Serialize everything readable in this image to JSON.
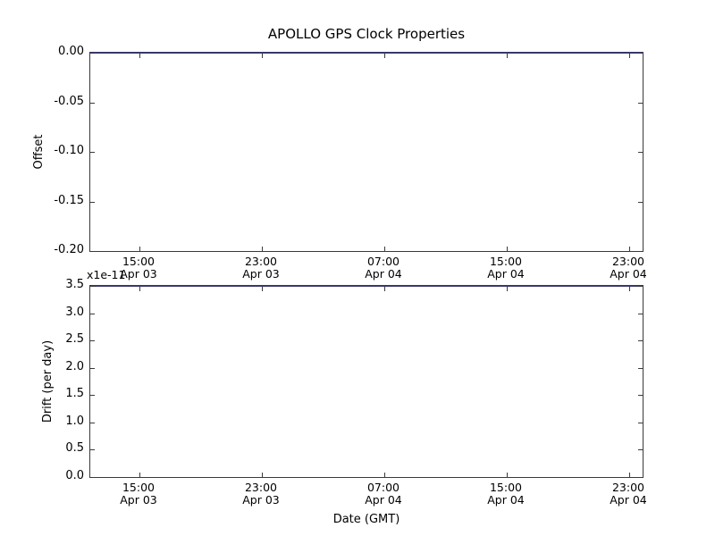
{
  "figure": {
    "title": "APOLLO GPS Clock Properties",
    "xlabel": "Date (GMT)",
    "background_color": "#ffffff",
    "spine_color": "#3a3a3a",
    "text_color": "#000000",
    "data_line_color": "#38386b"
  },
  "xticks": {
    "fracs": [
      0.089,
      0.31,
      0.531,
      0.752,
      0.973
    ],
    "labels": [
      "15:00\nApr 03",
      "23:00\nApr 03",
      "07:00\nApr 04",
      "15:00\nApr 04",
      "23:00\nApr 04"
    ]
  },
  "top_plot": {
    "ylabel": "Offset",
    "yticks": [
      "0.00",
      "-0.05",
      "-0.10",
      "-0.15",
      "-0.20"
    ],
    "line_value": "0.00"
  },
  "bottom_plot": {
    "ylabel": "Drift (per day)",
    "offset_text": "x1e-11",
    "yticks": [
      "3.5",
      "3.0",
      "2.5",
      "2.0",
      "1.5",
      "1.0",
      "0.5",
      "0.0"
    ],
    "line_value": "3.5e-11"
  },
  "chart_data": [
    {
      "type": "line",
      "title": "APOLLO GPS Clock Properties",
      "xlabel": "",
      "ylabel": "Offset",
      "ylim": [
        -0.2,
        0.0
      ],
      "yticks": [
        0.0,
        -0.05,
        -0.1,
        -0.15,
        -0.2
      ],
      "xtick_labels": [
        "15:00 Apr 03",
        "23:00 Apr 03",
        "07:00 Apr 04",
        "15:00 Apr 04",
        "23:00 Apr 04"
      ],
      "grid": false,
      "legend": "none",
      "series": [
        {
          "name": "offset",
          "color": "#38386b",
          "description": "flat horizontal blue line at y = 0.00 spanning the full x-range (coincides with top spine)",
          "x": [
            "Apr 03 15:00",
            "Apr 03 23:00",
            "Apr 04 07:00",
            "Apr 04 15:00",
            "Apr 04 23:00"
          ],
          "values": [
            0.0,
            0.0,
            0.0,
            0.0,
            0.0
          ]
        }
      ]
    },
    {
      "type": "line",
      "title": "",
      "xlabel": "Date (GMT)",
      "ylabel": "Drift (per day)",
      "y_multiplier": "x1e-11",
      "ylim": [
        0.0,
        3.5e-11
      ],
      "yticks": [
        0.0,
        0.5,
        1.0,
        1.5,
        2.0,
        2.5,
        3.0,
        3.5
      ],
      "xtick_labels": [
        "15:00 Apr 03",
        "23:00 Apr 03",
        "07:00 Apr 04",
        "15:00 Apr 04",
        "23:00 Apr 04"
      ],
      "grid": false,
      "legend": "none",
      "series": [
        {
          "name": "drift",
          "color": "#38386b",
          "description": "flat horizontal blue line at y = 3.5e-11 spanning the full x-range (coincides with top spine)",
          "x": [
            "Apr 03 15:00",
            "Apr 03 23:00",
            "Apr 04 07:00",
            "Apr 04 15:00",
            "Apr 04 23:00"
          ],
          "values": [
            3.5e-11,
            3.5e-11,
            3.5e-11,
            3.5e-11,
            3.5e-11
          ]
        }
      ]
    }
  ]
}
